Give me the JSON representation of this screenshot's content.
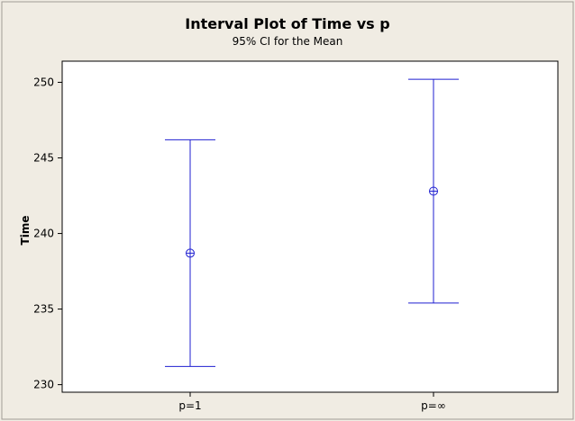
{
  "chart_data": {
    "type": "interval",
    "title": "Interval Plot of Time vs p",
    "subtitle": "95% CI for the Mean",
    "xlabel": "",
    "ylabel": "Time",
    "categories": [
      "p=1",
      "p=∞"
    ],
    "means": [
      238.7,
      242.8
    ],
    "ci_lower": [
      231.2,
      235.4
    ],
    "ci_upper": [
      246.2,
      250.2
    ],
    "ylim": [
      229.5,
      251.4
    ],
    "yticks": [
      230,
      235,
      240,
      245,
      250
    ],
    "grid": false,
    "legend": "none",
    "colors": {
      "background": "#f0ece3",
      "plot_area": "#ffffff",
      "series": "#1f1fd0",
      "axis": "#000000",
      "frame": "#9f9c96"
    }
  }
}
